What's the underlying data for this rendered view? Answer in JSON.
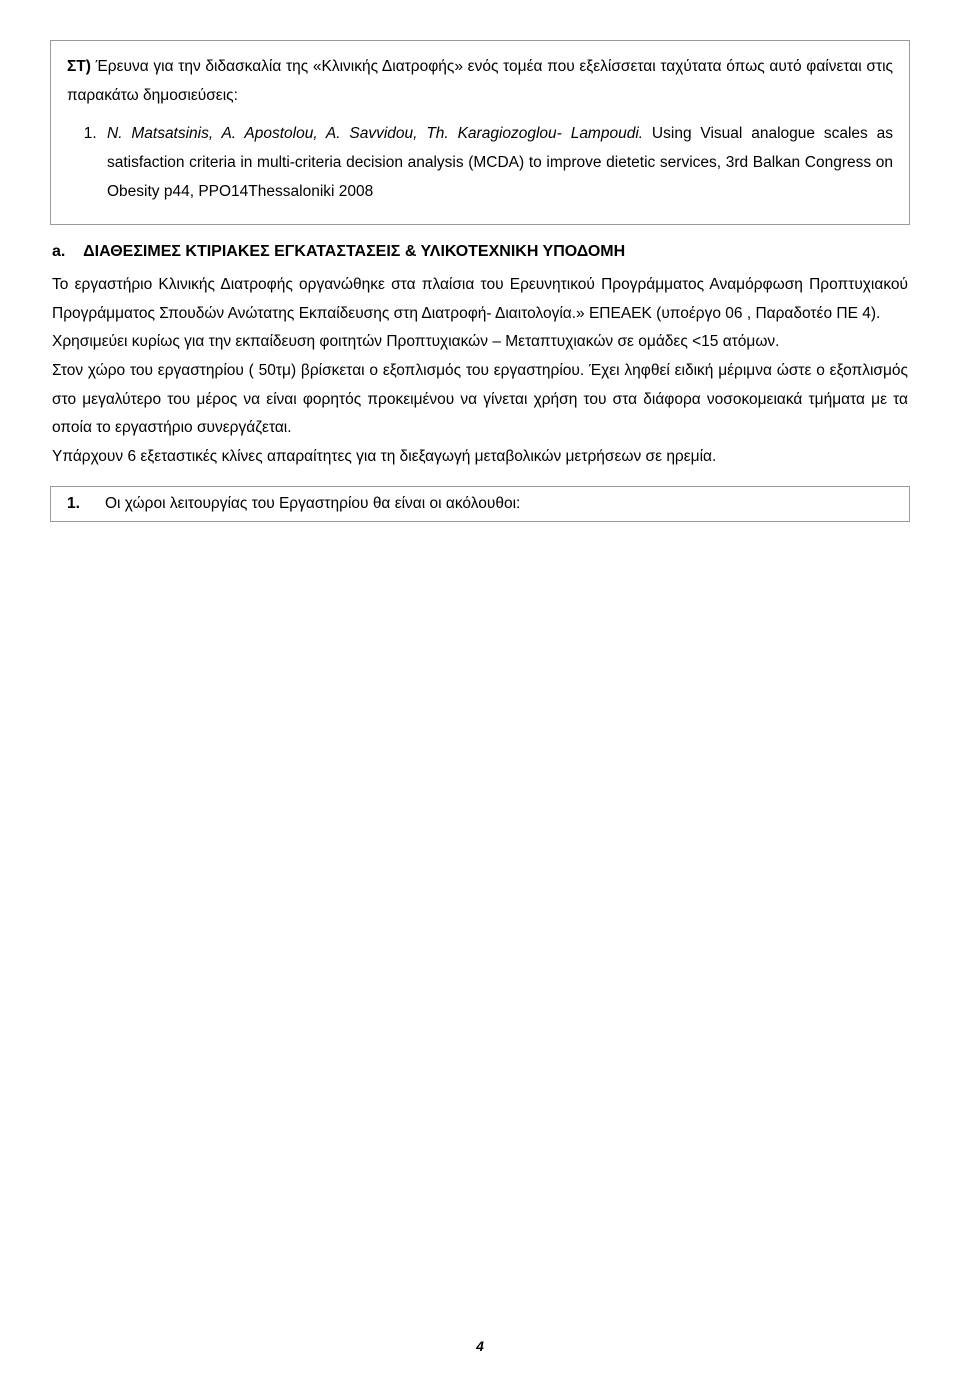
{
  "cell1": {
    "intro_bold": "ΣΤ)",
    "intro_text": " Έρευνα για την διδασκαλία της «Κλινικής Διατροφής» ενός τομέα που εξελίσσεται ταχύτατα όπως αυτό φαίνεται στις παρακάτω δημοσιεύσεις:",
    "item1_italic": "N. Matsatsinis, A. Apostolou, A. Savvidou, Th. Karagiozoglou- Lampoudi.",
    "item1_rest": " Using Visual analogue scales as satisfaction criteria in multi-criteria decision analysis (MCDA) to improve dietetic services,  3rd Balkan Congress on Obesity p44, PPO14Thessaloniki 2008"
  },
  "sectionA": {
    "heading_prefix": "a.",
    "heading_text": "ΔΙΑΘΕΣΙΜΕΣ ΚΤΙΡΙΑΚΕΣ ΕΓΚΑΤΑΣΤΑΣΕΙΣ & ΥΛΙΚΟΤΕΧΝΙΚΗ ΥΠΟΔΟΜΗ",
    "p1": "Το εργαστήριο Κλινικής Διατροφής οργανώθηκε στα πλαίσια του Ερευνητικού Προγράμματος Αναμόρφωση Προπτυχιακού Προγράμματος Σπουδών Ανώτατης Εκπαίδευσης στη Διατροφή- Διαιτολογία.» ΕΠΕΑΕΚ  (υποέργο 06 , Παραδοτέο ΠΕ 4).",
    "p2": " Χρησιμεύει κυρίως για την εκπαίδευση φοιτητών Προπτυχιακών – Μεταπτυχιακών σε ομάδες <15 ατόμων.",
    "p3": "Στον χώρο του εργαστηρίου ( 50τμ) βρίσκεται ο εξοπλισμός του εργαστηρίου. Έχει ληφθεί ειδική μέριμνα ώστε ο εξοπλισμός στο μεγαλύτερο του μέρος να είναι φορητός προκειμένου να γίνεται χρήση του στα διάφορα νοσοκομειακά τμήματα με τα οποία το εργαστήριο συνεργάζεται.",
    "p4": "Υπάρχουν 6 εξεταστικές κλίνες απαραίτητες για τη διεξαγωγή μεταβολικών μετρήσεων σε ηρεμία."
  },
  "cell2": {
    "num": "1.",
    "text": "Οι χώροι λειτουργίας του Εργαστηρίου θα είναι οι ακόλουθοι:"
  },
  "pageNumber": "4",
  "colors": {
    "text": "#000000",
    "border": "#999999",
    "background": "#ffffff"
  },
  "typography": {
    "body_fontsize": 15.5,
    "pagenum_fontsize": 14,
    "line_height": 1.85
  }
}
